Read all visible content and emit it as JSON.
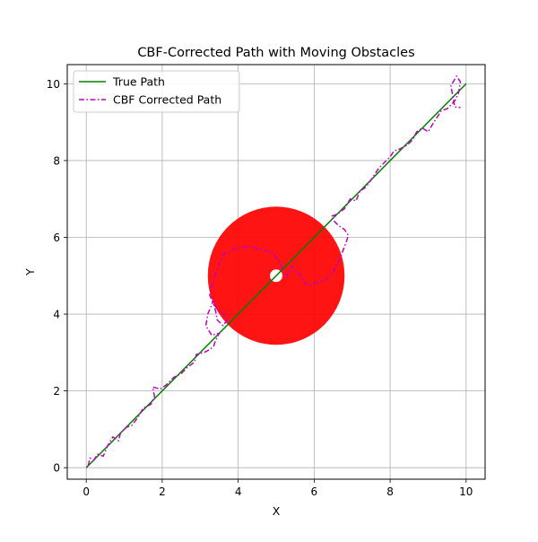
{
  "chart_data": {
    "type": "line",
    "title": "CBF-Corrected Path with Moving Obstacles",
    "xlabel": "X",
    "ylabel": "Y",
    "xlim": [
      -0.5,
      10.5
    ],
    "ylim": [
      -0.3,
      10.5
    ],
    "xticks": [
      0,
      2,
      4,
      6,
      8,
      10
    ],
    "yticks": [
      0,
      2,
      4,
      6,
      8,
      10
    ],
    "grid": true,
    "legend_position": "upper-left",
    "obstacle": {
      "center": [
        5,
        5
      ],
      "radius": 1.8,
      "color": "#ff0000",
      "marker_color": "#ffffff"
    },
    "series": [
      {
        "name": "True Path",
        "color": "#008000",
        "style": "solid",
        "x": [
          0,
          10
        ],
        "y": [
          0,
          10
        ]
      },
      {
        "name": "CBF Corrected Path",
        "color": "#bf00bf",
        "style": "dashdot",
        "x": [
          0.05,
          0.1,
          0.2,
          0.3,
          0.45,
          0.55,
          0.7,
          0.85,
          0.9,
          1.05,
          1.2,
          1.35,
          1.5,
          1.7,
          1.8,
          1.75,
          1.95,
          2.1,
          2.3,
          2.5,
          2.65,
          2.85,
          2.9,
          3.1,
          3.2,
          3.35,
          3.4,
          3.5,
          3.3,
          3.15,
          3.2,
          3.35,
          3.45,
          3.6,
          3.75,
          3.55,
          3.35,
          3.25,
          3.35,
          3.6,
          3.9,
          4.3,
          4.6,
          4.9,
          5.1,
          5.2,
          5.3,
          5.4,
          5.6,
          5.75,
          5.9,
          6.1,
          6.3,
          6.5,
          6.7,
          6.85,
          6.9,
          6.8,
          6.65,
          6.5,
          6.45,
          6.6,
          6.8,
          6.95,
          7.1,
          7.2,
          7.35,
          7.5,
          7.7,
          7.85,
          8.0,
          8.1,
          8.25,
          8.45,
          8.6,
          8.7,
          8.85,
          9.0,
          9.15,
          9.25,
          9.35,
          9.5,
          9.6,
          9.7,
          9.8,
          9.85,
          9.75,
          9.6,
          9.7,
          9.85
        ],
        "y": [
          0.05,
          0.25,
          0.2,
          0.35,
          0.3,
          0.55,
          0.8,
          0.7,
          0.9,
          1.05,
          1.1,
          1.3,
          1.55,
          1.65,
          1.85,
          2.1,
          2.05,
          2.15,
          2.35,
          2.45,
          2.6,
          2.75,
          2.95,
          3.0,
          3.05,
          3.15,
          3.3,
          3.5,
          3.45,
          3.7,
          4.0,
          4.35,
          3.85,
          3.7,
          3.9,
          4.05,
          4.25,
          4.5,
          4.9,
          5.55,
          5.7,
          5.75,
          5.7,
          5.6,
          5.35,
          5.1,
          5.0,
          5.25,
          5.05,
          4.8,
          4.75,
          4.85,
          4.9,
          5.1,
          5.5,
          5.9,
          6.05,
          6.2,
          6.3,
          6.45,
          6.55,
          6.6,
          6.75,
          7.0,
          6.95,
          7.2,
          7.3,
          7.5,
          7.8,
          7.95,
          8.1,
          8.25,
          8.3,
          8.4,
          8.55,
          8.75,
          8.85,
          8.75,
          9.0,
          9.15,
          9.3,
          9.35,
          9.45,
          9.55,
          9.75,
          10.05,
          10.2,
          9.95,
          9.4,
          9.38
        ]
      }
    ]
  }
}
